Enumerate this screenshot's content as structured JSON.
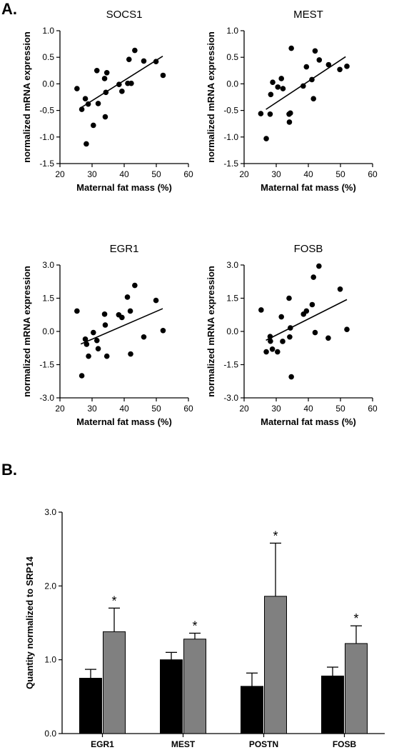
{
  "panel_labels": {
    "a": "A.",
    "b": "B."
  },
  "chart_data": [
    {
      "type": "scatter",
      "title": "SOCS1",
      "xlabel": "Maternal fat mass (%)",
      "ylabel": "normalized mRNA expression",
      "xlim": [
        20,
        60
      ],
      "ylim": [
        -1.5,
        1.0
      ],
      "xticks": [
        20,
        30,
        40,
        50,
        60
      ],
      "yticks": [
        -1.5,
        -1.0,
        -0.5,
        0.0,
        0.5,
        1.0
      ],
      "ytick_labels": [
        "-1.5",
        "-1.0",
        "-0.5",
        "0.0",
        "0.5",
        "1.0"
      ],
      "grid": false,
      "points": [
        {
          "x": 25.3,
          "y": -0.09
        },
        {
          "x": 26.8,
          "y": -0.48
        },
        {
          "x": 27.9,
          "y": -0.28
        },
        {
          "x": 28.2,
          "y": -1.13
        },
        {
          "x": 28.8,
          "y": -0.38
        },
        {
          "x": 30.4,
          "y": -0.78
        },
        {
          "x": 31.5,
          "y": 0.25
        },
        {
          "x": 31.9,
          "y": -0.37
        },
        {
          "x": 33.9,
          "y": 0.1
        },
        {
          "x": 34.1,
          "y": -0.62
        },
        {
          "x": 34.3,
          "y": -0.16
        },
        {
          "x": 34.6,
          "y": 0.21
        },
        {
          "x": 38.4,
          "y": -0.01
        },
        {
          "x": 39.3,
          "y": -0.14
        },
        {
          "x": 41.1,
          "y": 0.01
        },
        {
          "x": 41.5,
          "y": 0.46
        },
        {
          "x": 42.2,
          "y": 0.01
        },
        {
          "x": 43.3,
          "y": 0.63
        },
        {
          "x": 46.1,
          "y": 0.43
        },
        {
          "x": 49.9,
          "y": 0.42
        },
        {
          "x": 52.1,
          "y": 0.16
        }
      ],
      "fit_line": [
        {
          "x": 26.5,
          "y": -0.45
        },
        {
          "x": 52.0,
          "y": 0.52
        }
      ]
    },
    {
      "type": "scatter",
      "title": "MEST",
      "xlabel": "Maternal fat mass (%)",
      "ylabel": "normalized mRNA expression",
      "xlim": [
        20,
        60
      ],
      "ylim": [
        -1.5,
        1.0
      ],
      "xticks": [
        20,
        30,
        40,
        50,
        60
      ],
      "yticks": [
        -1.5,
        -1.0,
        -0.5,
        0.0,
        0.5,
        1.0
      ],
      "ytick_labels": [
        "-1.5",
        "-1.0",
        "-0.5",
        "0.0",
        "0.5",
        "1.0"
      ],
      "grid": false,
      "points": [
        {
          "x": 25.2,
          "y": -0.56
        },
        {
          "x": 26.9,
          "y": -1.03
        },
        {
          "x": 28.1,
          "y": -0.57
        },
        {
          "x": 28.3,
          "y": -0.2
        },
        {
          "x": 28.9,
          "y": 0.03
        },
        {
          "x": 30.5,
          "y": -0.06
        },
        {
          "x": 31.6,
          "y": 0.1
        },
        {
          "x": 32.1,
          "y": -0.09
        },
        {
          "x": 34.0,
          "y": -0.57
        },
        {
          "x": 34.1,
          "y": -0.72
        },
        {
          "x": 34.4,
          "y": -0.55
        },
        {
          "x": 34.7,
          "y": 0.67
        },
        {
          "x": 38.4,
          "y": -0.04
        },
        {
          "x": 39.4,
          "y": 0.32
        },
        {
          "x": 41.1,
          "y": 0.08
        },
        {
          "x": 41.6,
          "y": -0.28
        },
        {
          "x": 42.1,
          "y": 0.62
        },
        {
          "x": 43.4,
          "y": 0.45
        },
        {
          "x": 46.3,
          "y": 0.36
        },
        {
          "x": 49.8,
          "y": 0.27
        },
        {
          "x": 52.0,
          "y": 0.33
        }
      ],
      "fit_line": [
        {
          "x": 26.8,
          "y": -0.48
        },
        {
          "x": 51.6,
          "y": 0.51
        }
      ]
    },
    {
      "type": "scatter",
      "title": "EGR1",
      "xlabel": "Maternal fat mass (%)",
      "ylabel": "normalized mRNA expression",
      "xlim": [
        20,
        60
      ],
      "ylim": [
        -3.0,
        3.0
      ],
      "xticks": [
        20,
        30,
        40,
        50,
        60
      ],
      "yticks": [
        -3.0,
        -1.5,
        0.0,
        1.5,
        3.0
      ],
      "ytick_labels": [
        "-3.0",
        "-1.5",
        "0.0",
        "1.5",
        "3.0"
      ],
      "grid": false,
      "points": [
        {
          "x": 25.3,
          "y": 0.92
        },
        {
          "x": 26.8,
          "y": -2.0
        },
        {
          "x": 27.9,
          "y": -0.35
        },
        {
          "x": 28.3,
          "y": -0.58
        },
        {
          "x": 28.9,
          "y": -1.12
        },
        {
          "x": 30.4,
          "y": -0.05
        },
        {
          "x": 31.5,
          "y": -0.41
        },
        {
          "x": 31.9,
          "y": -0.78
        },
        {
          "x": 33.9,
          "y": 0.78
        },
        {
          "x": 34.1,
          "y": 0.29
        },
        {
          "x": 34.6,
          "y": -1.12
        },
        {
          "x": 38.3,
          "y": 0.75
        },
        {
          "x": 39.3,
          "y": 0.63
        },
        {
          "x": 41.0,
          "y": 1.55
        },
        {
          "x": 41.9,
          "y": 0.92
        },
        {
          "x": 42.0,
          "y": -1.02
        },
        {
          "x": 43.3,
          "y": 2.08
        },
        {
          "x": 46.1,
          "y": -0.25
        },
        {
          "x": 49.9,
          "y": 1.4
        },
        {
          "x": 52.1,
          "y": 0.04
        }
      ],
      "fit_line": [
        {
          "x": 26.5,
          "y": -0.57
        },
        {
          "x": 52.0,
          "y": 1.03
        }
      ]
    },
    {
      "type": "scatter",
      "title": "FOSB",
      "xlabel": "Maternal fat mass (%)",
      "ylabel": "normalized mRNA expression",
      "xlim": [
        20,
        60
      ],
      "ylim": [
        -3.0,
        3.0
      ],
      "xticks": [
        20,
        30,
        40,
        50,
        60
      ],
      "yticks": [
        -3.0,
        -1.5,
        0.0,
        1.5,
        3.0
      ],
      "ytick_labels": [
        "-3.0",
        "-1.5",
        "0.0",
        "1.5",
        "3.0"
      ],
      "grid": false,
      "points": [
        {
          "x": 25.3,
          "y": 0.97
        },
        {
          "x": 26.9,
          "y": -0.92
        },
        {
          "x": 28.1,
          "y": -0.23
        },
        {
          "x": 28.2,
          "y": -0.44
        },
        {
          "x": 28.8,
          "y": -0.8
        },
        {
          "x": 30.4,
          "y": -0.92
        },
        {
          "x": 31.6,
          "y": 0.66
        },
        {
          "x": 32.0,
          "y": -0.45
        },
        {
          "x": 34.0,
          "y": 1.5
        },
        {
          "x": 34.2,
          "y": -0.25
        },
        {
          "x": 34.4,
          "y": 0.16
        },
        {
          "x": 34.7,
          "y": -2.05
        },
        {
          "x": 38.5,
          "y": 0.78
        },
        {
          "x": 39.4,
          "y": 0.92
        },
        {
          "x": 41.2,
          "y": 1.21
        },
        {
          "x": 41.6,
          "y": 2.45
        },
        {
          "x": 42.1,
          "y": -0.05
        },
        {
          "x": 43.3,
          "y": 2.95
        },
        {
          "x": 46.2,
          "y": -0.3
        },
        {
          "x": 49.9,
          "y": 1.91
        },
        {
          "x": 52.0,
          "y": 0.09
        }
      ],
      "fit_line": [
        {
          "x": 26.8,
          "y": -0.4
        },
        {
          "x": 52.0,
          "y": 1.44
        }
      ]
    },
    {
      "type": "bar",
      "title": "",
      "xlabel": "",
      "ylabel": "Quantity normalized to SRP14",
      "ylim": [
        0.0,
        3.0
      ],
      "yticks": [
        0.0,
        1.0,
        2.0,
        3.0
      ],
      "ytick_labels": [
        "0.0",
        "1.0",
        "2.0",
        "3.0"
      ],
      "grid": false,
      "categories": [
        "EGR1",
        "MEST",
        "POSTN",
        "FOSB"
      ],
      "series": [
        {
          "color": "#000000",
          "values": [
            0.75,
            1.0,
            0.64,
            0.78
          ],
          "errors": [
            0.12,
            0.1,
            0.18,
            0.12
          ]
        },
        {
          "color": "#808080",
          "values": [
            1.38,
            1.28,
            1.86,
            1.22
          ],
          "errors": [
            0.32,
            0.08,
            0.72,
            0.24
          ]
        }
      ],
      "significance": [
        "*",
        "*",
        "*",
        "*"
      ]
    }
  ]
}
